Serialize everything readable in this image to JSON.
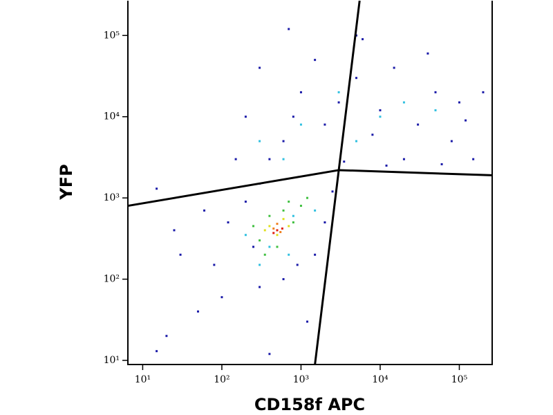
{
  "chart_data": {
    "type": "scatter",
    "x_label": "CD158f APC",
    "y_label": "YFP",
    "log_x": true,
    "log_y": true,
    "xlim": [
      6.5,
      260000
    ],
    "ylim": [
      8.9,
      268000
    ],
    "xticks": [
      {
        "value": 10,
        "label": "10¹"
      },
      {
        "value": 100,
        "label": "10²"
      },
      {
        "value": 1000,
        "label": "10³"
      },
      {
        "value": 10000,
        "label": "10⁴"
      },
      {
        "value": 100000,
        "label": "10⁵"
      }
    ],
    "yticks": [
      {
        "value": 10,
        "label": "10¹"
      },
      {
        "value": 100,
        "label": "10²"
      },
      {
        "value": 1000,
        "label": "10³"
      },
      {
        "value": 10000,
        "label": "10⁴"
      },
      {
        "value": 100000,
        "label": "10⁵"
      }
    ],
    "gates": [
      {
        "color": "#000000",
        "x": [
          1500,
          3000,
          5500
        ],
        "y": [
          8.9,
          2200,
          268000
        ]
      },
      {
        "color": "#000000",
        "x": [
          6.5,
          3000,
          260000
        ],
        "y": [
          800,
          2200,
          1900
        ]
      }
    ],
    "series": [
      {
        "color": "#1a1aa8",
        "x": [
          30,
          80,
          120,
          200,
          250,
          300,
          400,
          600,
          800,
          1000,
          1500,
          2000,
          3000,
          5000,
          8000,
          10000,
          15000,
          20000,
          30000,
          50000,
          80000,
          100000,
          40000,
          6000,
          700,
          300,
          200,
          150,
          100,
          300,
          600,
          900,
          1500,
          2000,
          50,
          20,
          15,
          400,
          1200,
          2500,
          3500,
          12000,
          60000,
          150000,
          200000,
          25,
          15,
          60,
          5000,
          120000
        ],
        "y": [
          200,
          150,
          500,
          900,
          250,
          1500,
          3000,
          5000,
          10000,
          20000,
          50000,
          8000,
          15000,
          30000,
          6000,
          12000,
          40000,
          3000,
          8000,
          20000,
          5000,
          15000,
          60000,
          90000,
          120000,
          40000,
          10000,
          3000,
          60,
          80,
          100,
          150,
          200,
          500,
          40,
          20,
          13,
          12,
          30,
          1200,
          2800,
          2500,
          2600,
          3000,
          20000,
          400,
          1300,
          700,
          100000,
          9000
        ]
      },
      {
        "color": "#30c0e0",
        "x": [
          300,
          1000,
          3000,
          10000,
          20000,
          600,
          400,
          800,
          200,
          1500,
          5000,
          50000,
          300,
          700
        ],
        "y": [
          5000,
          8000,
          20000,
          10000,
          15000,
          3000,
          250,
          600,
          350,
          700,
          5000,
          12000,
          150,
          200
        ]
      },
      {
        "color": "#40c040",
        "x": [
          300,
          400,
          600,
          800,
          1000,
          250,
          500,
          1200,
          350,
          700
        ],
        "y": [
          300,
          600,
          700,
          500,
          800,
          450,
          250,
          1000,
          200,
          900
        ]
      },
      {
        "color": "#e0e020",
        "x": [
          400,
          600,
          500,
          700,
          350
        ],
        "y": [
          450,
          550,
          350,
          450,
          400
        ]
      },
      {
        "color": "#f08020",
        "x": [
          450,
          550,
          500
        ],
        "y": [
          420,
          380,
          480
        ]
      },
      {
        "color": "#e02010",
        "x": [
          500,
          450,
          580
        ],
        "y": [
          400,
          370,
          420
        ]
      }
    ]
  }
}
